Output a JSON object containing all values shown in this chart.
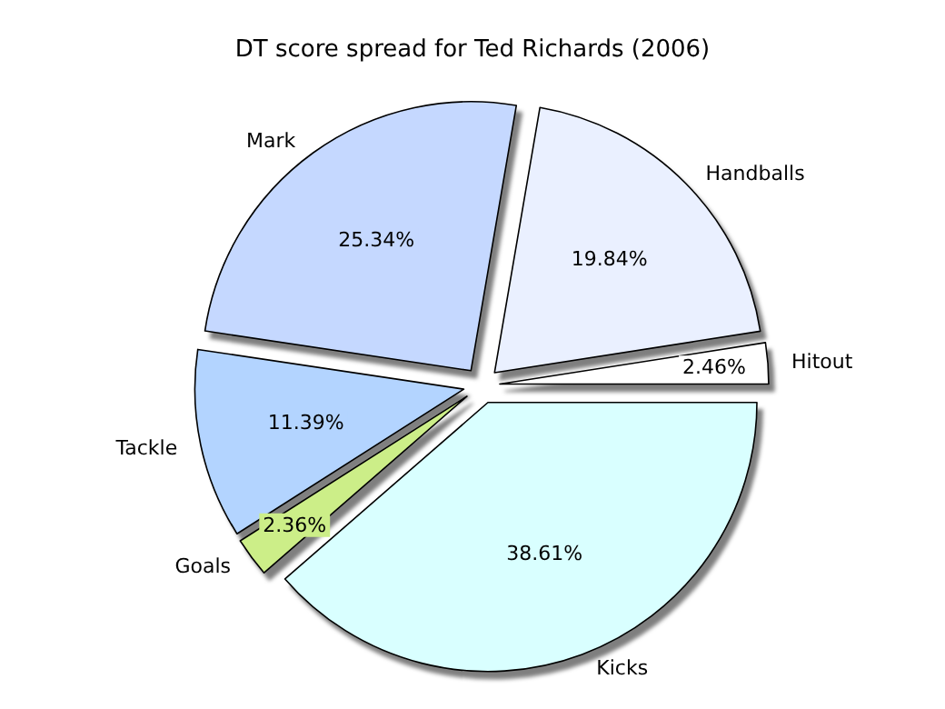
{
  "chart_data": {
    "type": "pie",
    "title": "DT score spread for Ted Richards (2006)",
    "categories": [
      "Hitout",
      "Handballs",
      "Mark",
      "Tackle",
      "Goals",
      "Kicks"
    ],
    "values": [
      2.46,
      19.84,
      25.34,
      11.39,
      2.36,
      38.61
    ],
    "value_labels": [
      "2.46%",
      "19.84%",
      "25.34%",
      "11.39%",
      "2.36%",
      "38.61%"
    ],
    "colors": [
      "#ffffff",
      "#eaf0ff",
      "#c5d8ff",
      "#b3d4ff",
      "#ccee88",
      "#d9ffff"
    ],
    "legend": false
  }
}
